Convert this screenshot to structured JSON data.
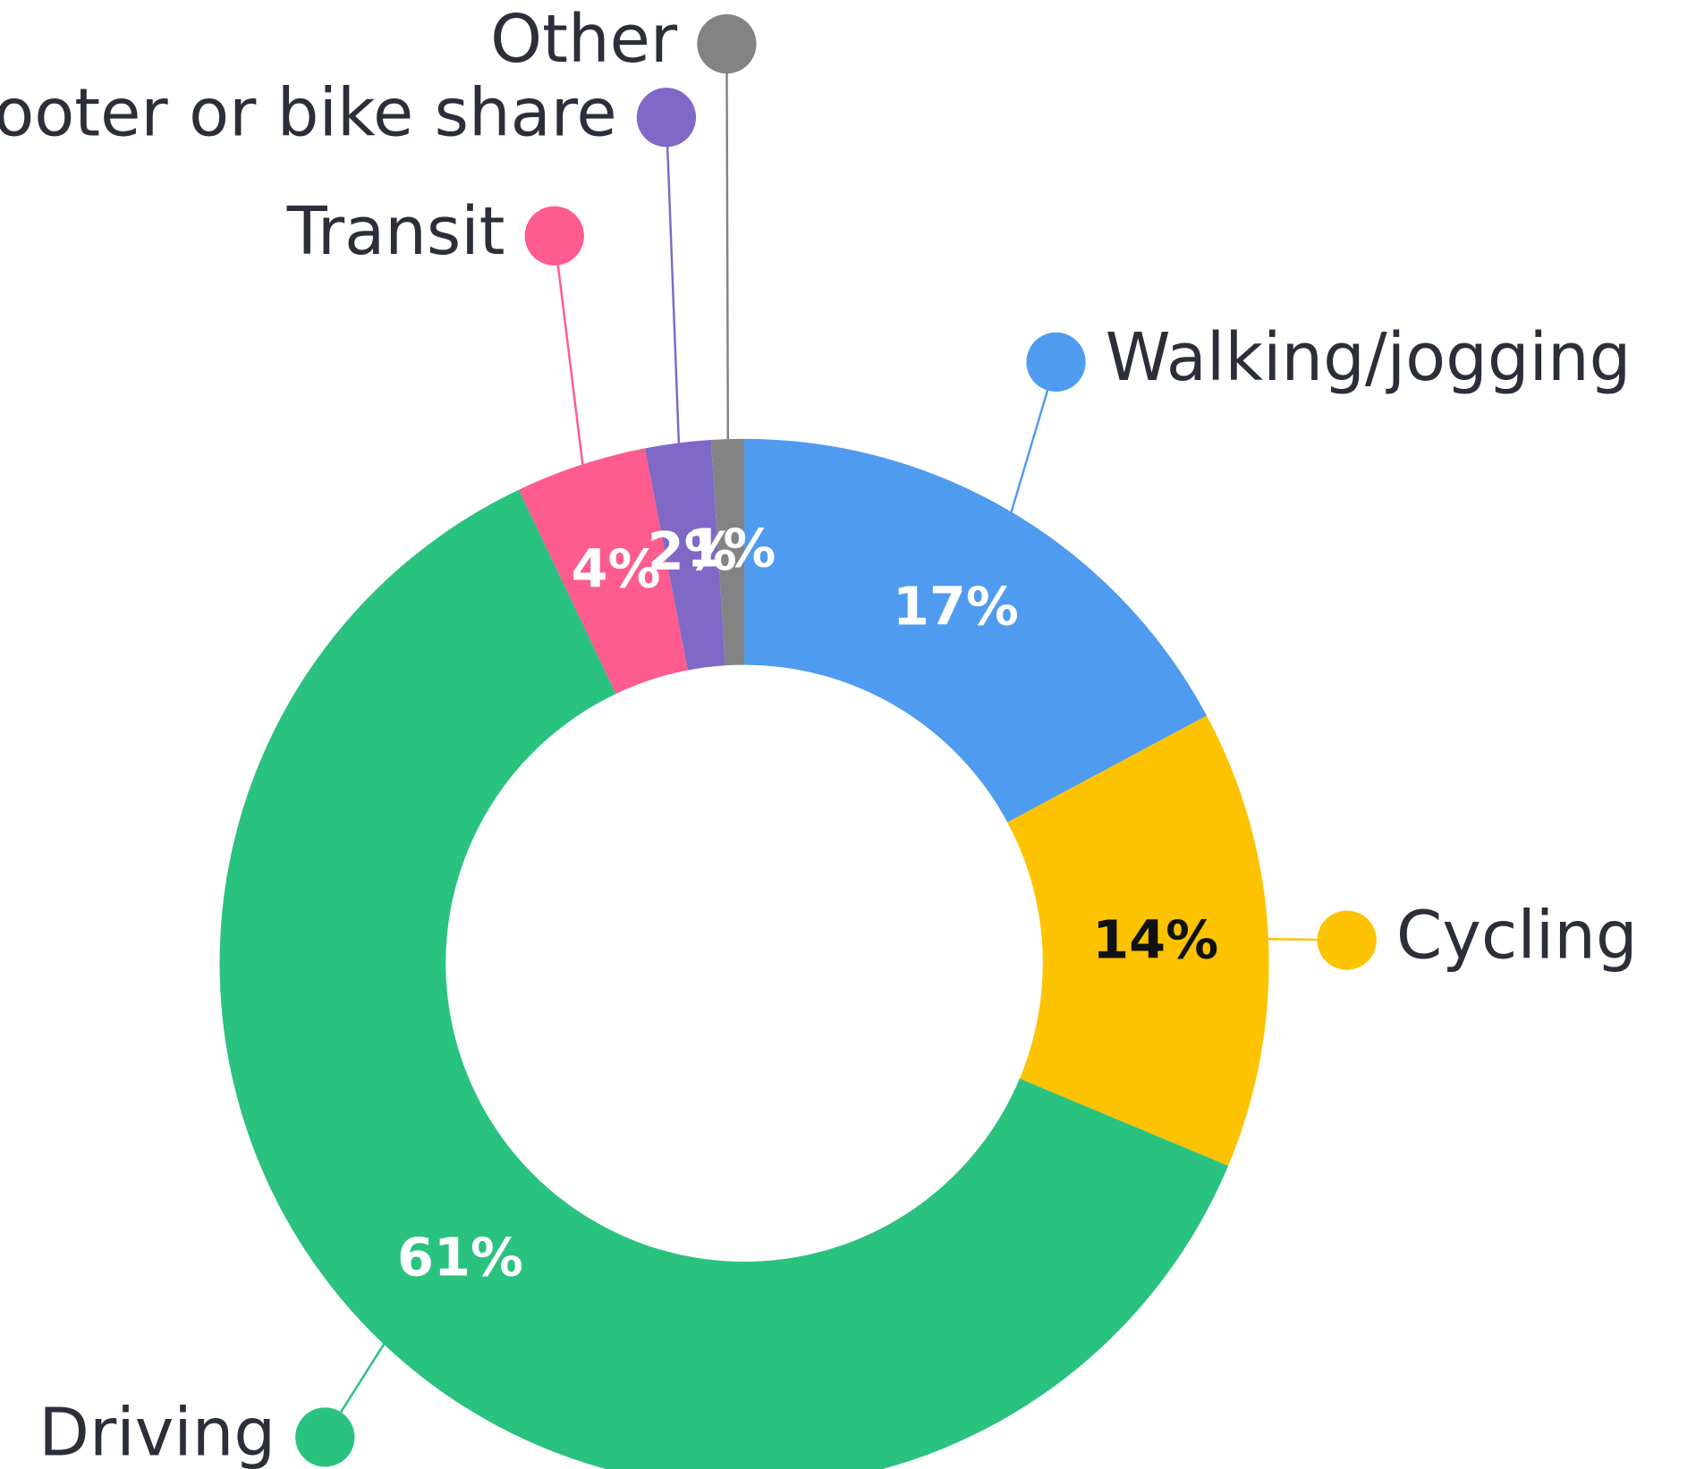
{
  "chart_data": {
    "type": "pie",
    "categories": [
      "Walking/jogging",
      "Cycling",
      "Driving",
      "Transit",
      "Scooter or bike share",
      "Other"
    ],
    "values": [
      17,
      14,
      61,
      4,
      2,
      1
    ],
    "value_labels": [
      "17%",
      "14%",
      "61%",
      "4%",
      "2%",
      "1%"
    ],
    "colors": [
      "#4f9bef",
      "#fdc200",
      "#2ac27f",
      "#fe5b8e",
      "#8068c7",
      "#838383"
    ],
    "value_label_colors": [
      "#ffffff",
      "#111111",
      "#ffffff",
      "#ffffff",
      "#ffffff",
      "#ffffff"
    ]
  }
}
